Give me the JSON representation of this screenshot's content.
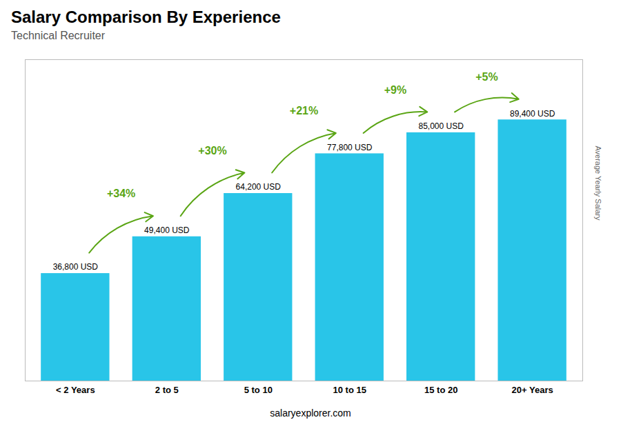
{
  "chart_data": {
    "type": "bar",
    "title": "Salary Comparison By Experience",
    "subtitle": "Technical Recruiter",
    "ylabel": "Average Yearly Salary",
    "caption": "salaryexplorer.com",
    "categories": [
      "< 2 Years",
      "2 to 5",
      "5 to 10",
      "10 to 15",
      "15 to 20",
      "20+ Years"
    ],
    "values": [
      36800,
      49400,
      64200,
      77800,
      85000,
      89400
    ],
    "value_labels": [
      "36,800 USD",
      "49,400 USD",
      "64,200 USD",
      "77,800 USD",
      "85,000 USD",
      "89,400 USD"
    ],
    "data_labels": true,
    "annotations": [
      "+34%",
      "+30%",
      "+21%",
      "+9%",
      "+5%"
    ],
    "color": "#29c5e8",
    "ylim": [
      0,
      110000
    ],
    "tick_labels": "x",
    "grid": false
  }
}
